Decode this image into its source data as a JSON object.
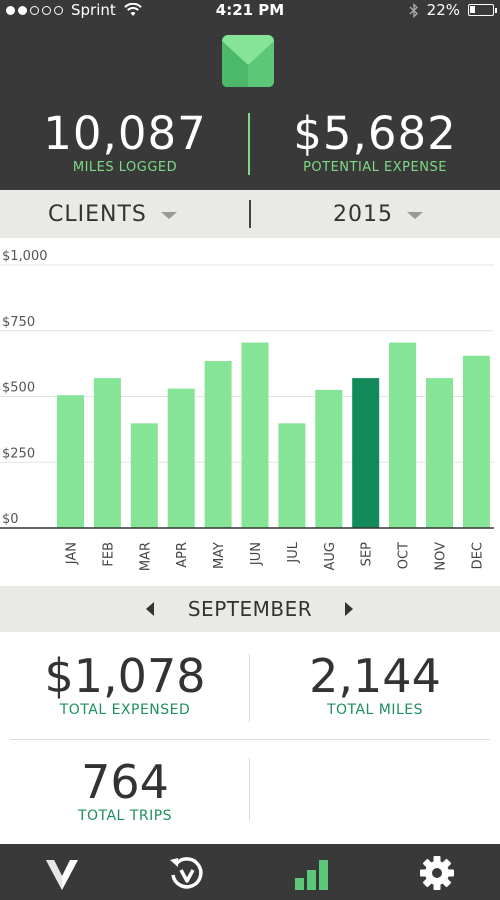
{
  "status_bar": {
    "carrier": "Sprint",
    "time": "4:21 PM",
    "battery": "22%",
    "battery_level": 0.22
  },
  "header": {
    "miles_logged_value": "10,087",
    "miles_logged_label": "MILES LOGGED",
    "potential_expense_value": "$5,682",
    "potential_expense_label": "POTENTIAL EXPENSE",
    "accent_color": "#7fd985",
    "background_color": "#393939"
  },
  "filters": {
    "category": "CLIENTS",
    "year": "2015"
  },
  "chart_data": {
    "type": "bar",
    "categories": [
      "JAN",
      "FEB",
      "MAR",
      "APR",
      "MAY",
      "JUN",
      "JUL",
      "AUG",
      "SEP",
      "OCT",
      "NOV",
      "DEC"
    ],
    "values": [
      505,
      570,
      398,
      530,
      635,
      705,
      398,
      525,
      570,
      705,
      570,
      655
    ],
    "y_ticks": [
      "$0",
      "$250",
      "$500",
      "$750",
      "$1,000"
    ],
    "ylim": [
      0,
      1000
    ],
    "highlight_index": 8,
    "bar_color": "#86e497",
    "highlight_color": "#128a5a",
    "grid": true
  },
  "month_selector": {
    "label": "SEPTEMBER"
  },
  "month_stats": {
    "total_expensed_value": "$1,078",
    "total_expensed_label": "TOTAL EXPENSED",
    "total_miles_value": "2,144",
    "total_miles_label": "TOTAL MILES",
    "total_trips_value": "764",
    "total_trips_label": "TOTAL TRIPS"
  },
  "tabbar": {
    "tabs": [
      {
        "icon": "logo-icon"
      },
      {
        "icon": "history-icon"
      },
      {
        "icon": "chart-icon",
        "active": true
      },
      {
        "icon": "gear-icon"
      }
    ]
  }
}
